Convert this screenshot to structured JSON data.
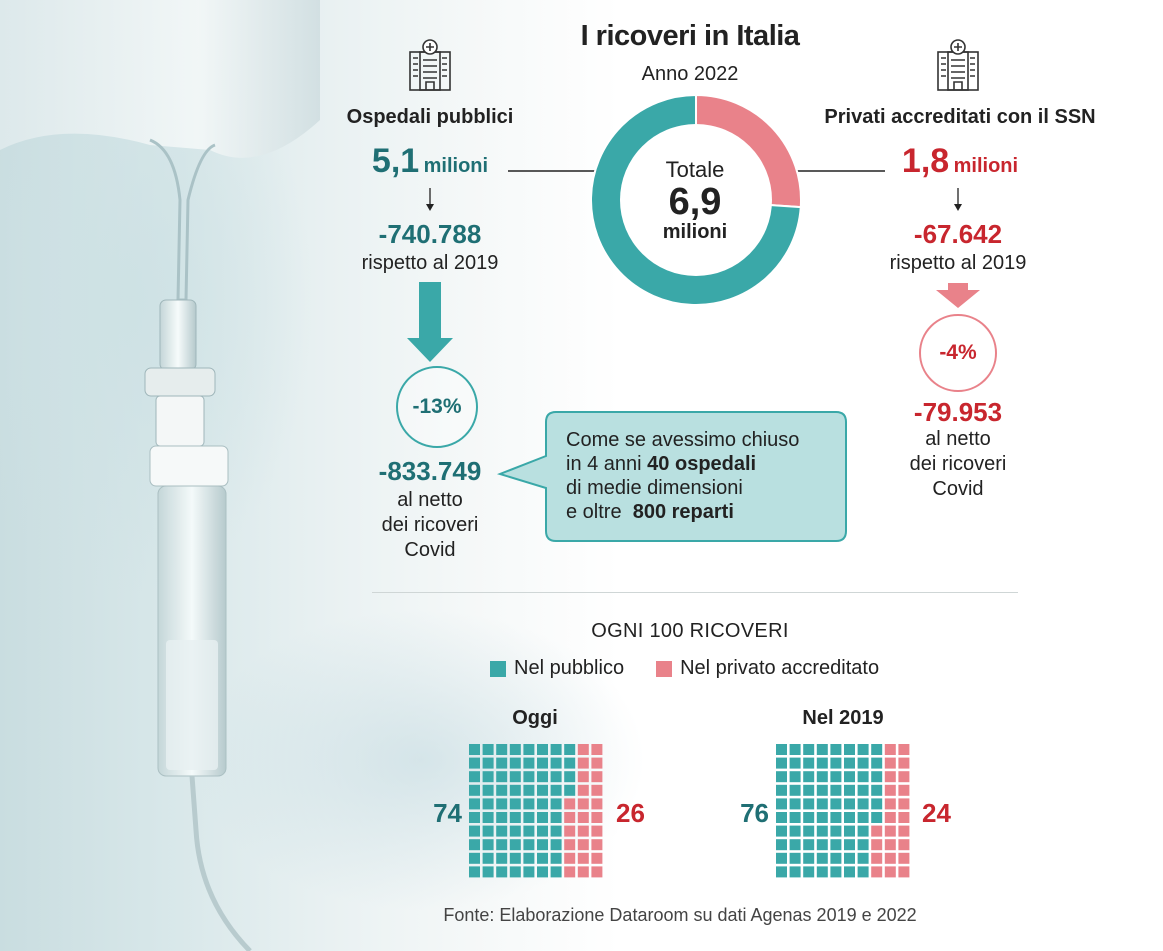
{
  "title": "I ricoveri in Italia",
  "subtitle": "Anno 2022",
  "colors": {
    "public": "#3aa8a8",
    "private": "#e9828a",
    "public_text": "#1f6f74",
    "private_text": "#c8262e"
  },
  "icons": [
    "hospital-icon",
    "hospital-icon"
  ],
  "public": {
    "label": "Ospedali pubblici",
    "total_value": "5,1",
    "total_unit": "milioni",
    "delta": "-740.788",
    "delta_sub": "rispetto al 2019",
    "pct": "-13%",
    "net": "-833.749",
    "net_sub": [
      "al netto",
      "dei ricoveri",
      "Covid"
    ]
  },
  "private": {
    "label": "Privati accreditati con il SSN",
    "total_value": "1,8",
    "total_unit": "milioni",
    "delta": "-67.642",
    "delta_sub": "rispetto al 2019",
    "pct": "-4%",
    "net": "-79.953",
    "net_sub": [
      "al netto",
      "dei ricoveri",
      "Covid"
    ]
  },
  "donut": {
    "label": "Totale",
    "value": "6,9",
    "unit": "milioni"
  },
  "bubble": {
    "line1": "Come se avessimo chiuso",
    "line2_pre": "in 4 anni ",
    "line2_bold": "40 ospedali",
    "line3": "di medie dimensioni",
    "line4_pre": "e oltre  ",
    "line4_bold": "800 reparti"
  },
  "grid_section": {
    "title": "OGNI 100 RICOVERI",
    "legend_public": "Nel pubblico",
    "legend_private": "Nel privato accreditato",
    "oggi_label": "Oggi",
    "y2019_label": "Nel 2019"
  },
  "source": "Fonte: Elaborazione Dataroom su dati Agenas 2019 e 2022",
  "chart_data": [
    {
      "type": "pie",
      "title": "I ricoveri in Italia",
      "subtitle": "Anno 2022",
      "categories": [
        "Ospedali pubblici",
        "Privati accreditati con il SSN"
      ],
      "values": [
        5.1,
        1.8
      ],
      "unit": "milioni",
      "total": 6.9,
      "changes_vs_2019": [
        -740788,
        -67642
      ],
      "changes_pct_net_covid": [
        -13,
        -4
      ],
      "changes_net_covid": [
        -833749,
        -79953
      ]
    },
    {
      "type": "waffle",
      "title": "Oggi",
      "categories": [
        "Nel pubblico",
        "Nel privato accreditato"
      ],
      "values": [
        74,
        26
      ]
    },
    {
      "type": "waffle",
      "title": "Nel 2019",
      "categories": [
        "Nel pubblico",
        "Nel privato accreditato"
      ],
      "values": [
        76,
        24
      ]
    }
  ]
}
